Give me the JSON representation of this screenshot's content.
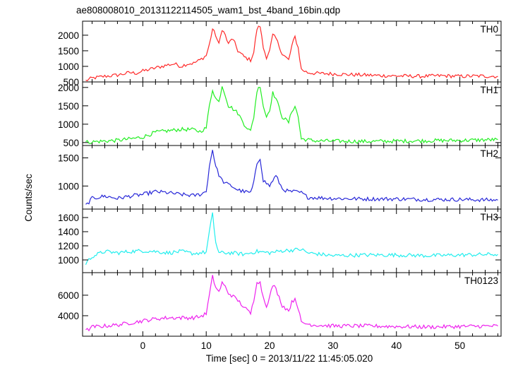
{
  "chart_data": {
    "type": "line",
    "title": "ae808008010_20131122114505_wam1_bst_4band_16bin.qdp",
    "xlabel": "Time [sec] 0 = 2013/11/22 11:45:05.020",
    "ylabel": "Counts/sec",
    "xlim": [
      -9.5,
      56.5
    ],
    "x_ticks": [
      0,
      10,
      20,
      30,
      40,
      50
    ],
    "grid": false,
    "colors": {
      "TH0": "#ff2a2a",
      "TH1": "#22ee22",
      "TH2": "#2828d8",
      "TH3": "#22eeee",
      "TH0123": "#ee22ee"
    },
    "panels": [
      {
        "name": "TH0",
        "ylim": [
          500,
          2450
        ],
        "yticks": [
          500,
          1000,
          1500,
          2000
        ],
        "points": [
          [
            -9,
            540
          ],
          [
            -8,
            620
          ],
          [
            -7,
            650
          ],
          [
            -6,
            680
          ],
          [
            -5,
            700
          ],
          [
            -4,
            720
          ],
          [
            -3,
            760
          ],
          [
            -2,
            800
          ],
          [
            -1,
            780
          ],
          [
            0,
            850
          ],
          [
            1,
            900
          ],
          [
            2,
            950
          ],
          [
            3,
            1000
          ],
          [
            4,
            1050
          ],
          [
            5,
            1080
          ],
          [
            6,
            1000
          ],
          [
            7,
            1080
          ],
          [
            8,
            1100
          ],
          [
            9,
            1200
          ],
          [
            10,
            1350
          ],
          [
            10.5,
            1700
          ],
          [
            11,
            2200
          ],
          [
            11.5,
            2000
          ],
          [
            12,
            1700
          ],
          [
            12.5,
            2200
          ],
          [
            13,
            2000
          ],
          [
            13.5,
            1700
          ],
          [
            14,
            1900
          ],
          [
            14.5,
            1750
          ],
          [
            15,
            1500
          ],
          [
            16,
            1300
          ],
          [
            17,
            1200
          ],
          [
            17.5,
            1450
          ],
          [
            18,
            2200
          ],
          [
            18.5,
            2300
          ],
          [
            19,
            1600
          ],
          [
            19.5,
            1300
          ],
          [
            20,
            1500
          ],
          [
            20.5,
            2000
          ],
          [
            21,
            1900
          ],
          [
            22,
            1400
          ],
          [
            23,
            1200
          ],
          [
            23.5,
            1650
          ],
          [
            24,
            1950
          ],
          [
            24.5,
            1600
          ],
          [
            25,
            900
          ],
          [
            26,
            800
          ],
          [
            27,
            780
          ],
          [
            28,
            770
          ],
          [
            30,
            760
          ],
          [
            32,
            740
          ],
          [
            35,
            720
          ],
          [
            38,
            700
          ],
          [
            41,
            690
          ],
          [
            44,
            680
          ],
          [
            47,
            700
          ],
          [
            50,
            680
          ],
          [
            53,
            690
          ],
          [
            56,
            680
          ]
        ]
      },
      {
        "name": "TH1",
        "ylim": [
          420,
          2150
        ],
        "yticks": [
          500,
          1000,
          1500,
          2000
        ],
        "points": [
          [
            -9,
            510
          ],
          [
            -8,
            520
          ],
          [
            -6,
            540
          ],
          [
            -4,
            560
          ],
          [
            -2,
            600
          ],
          [
            0,
            650
          ],
          [
            2,
            780
          ],
          [
            4,
            820
          ],
          [
            6,
            860
          ],
          [
            8,
            850
          ],
          [
            9,
            800
          ],
          [
            10,
            900
          ],
          [
            10.5,
            1500
          ],
          [
            11,
            1950
          ],
          [
            11.5,
            1700
          ],
          [
            12,
            1600
          ],
          [
            12.5,
            2050
          ],
          [
            13,
            1800
          ],
          [
            13.5,
            1500
          ],
          [
            14,
            1450
          ],
          [
            15,
            1300
          ],
          [
            16,
            1000
          ],
          [
            17,
            800
          ],
          [
            17.5,
            1200
          ],
          [
            18,
            1900
          ],
          [
            18.5,
            2050
          ],
          [
            19,
            1500
          ],
          [
            19.5,
            1200
          ],
          [
            20,
            1400
          ],
          [
            20.5,
            1850
          ],
          [
            21,
            1700
          ],
          [
            22,
            1200
          ],
          [
            23,
            1050
          ],
          [
            23.5,
            1350
          ],
          [
            24,
            1500
          ],
          [
            24.5,
            1200
          ],
          [
            25,
            600
          ],
          [
            27,
            550
          ],
          [
            30,
            540
          ],
          [
            35,
            530
          ],
          [
            40,
            540
          ],
          [
            45,
            550
          ],
          [
            50,
            560
          ],
          [
            56,
            580
          ]
        ]
      },
      {
        "name": "TH2",
        "ylim": [
          590,
          1720
        ],
        "yticks": [
          1000,
          1500
        ],
        "points": [
          [
            -9,
            650
          ],
          [
            -8,
            780
          ],
          [
            -6,
            820
          ],
          [
            -4,
            780
          ],
          [
            -2,
            820
          ],
          [
            0,
            850
          ],
          [
            2,
            900
          ],
          [
            4,
            880
          ],
          [
            6,
            850
          ],
          [
            8,
            830
          ],
          [
            9,
            850
          ],
          [
            10,
            900
          ],
          [
            10.5,
            1350
          ],
          [
            11,
            1650
          ],
          [
            11.5,
            1350
          ],
          [
            12,
            1200
          ],
          [
            12.5,
            1100
          ],
          [
            13,
            1050
          ],
          [
            14,
            1000
          ],
          [
            15,
            930
          ],
          [
            16,
            900
          ],
          [
            17,
            880
          ],
          [
            17.5,
            1050
          ],
          [
            18,
            1400
          ],
          [
            18.5,
            1500
          ],
          [
            19,
            1100
          ],
          [
            20,
            1000
          ],
          [
            20.5,
            1100
          ],
          [
            21,
            1180
          ],
          [
            22,
            950
          ],
          [
            23,
            900
          ],
          [
            24,
            900
          ],
          [
            25,
            880
          ],
          [
            26,
            800
          ],
          [
            28,
            790
          ],
          [
            30,
            780
          ],
          [
            35,
            770
          ],
          [
            40,
            770
          ],
          [
            45,
            760
          ],
          [
            50,
            760
          ],
          [
            56,
            750
          ]
        ]
      },
      {
        "name": "TH3",
        "ylim": [
          820,
          1720
        ],
        "yticks": [
          1000,
          1200,
          1400,
          1600
        ],
        "points": [
          [
            -9,
            950
          ],
          [
            -8,
            1050
          ],
          [
            -6,
            1120
          ],
          [
            -4,
            1100
          ],
          [
            -2,
            1120
          ],
          [
            0,
            1130
          ],
          [
            2,
            1120
          ],
          [
            4,
            1100
          ],
          [
            6,
            1120
          ],
          [
            8,
            1090
          ],
          [
            9,
            1100
          ],
          [
            10,
            1110
          ],
          [
            10.5,
            1400
          ],
          [
            11,
            1650
          ],
          [
            11.5,
            1250
          ],
          [
            12,
            1100
          ],
          [
            14,
            1100
          ],
          [
            16,
            1080
          ],
          [
            18,
            1120
          ],
          [
            20,
            1100
          ],
          [
            22,
            1130
          ],
          [
            25,
            1150
          ],
          [
            26,
            1100
          ],
          [
            28,
            1080
          ],
          [
            30,
            1060
          ],
          [
            35,
            1070
          ],
          [
            40,
            1070
          ],
          [
            45,
            1060
          ],
          [
            50,
            1070
          ],
          [
            56,
            1080
          ]
        ]
      },
      {
        "name": "TH0123",
        "ylim": [
          2000,
          8200
        ],
        "yticks": [
          4000,
          6000
        ],
        "points": [
          [
            -9,
            2500
          ],
          [
            -8,
            2900
          ],
          [
            -6,
            3000
          ],
          [
            -4,
            3100
          ],
          [
            -2,
            3300
          ],
          [
            0,
            3500
          ],
          [
            2,
            3700
          ],
          [
            4,
            3800
          ],
          [
            6,
            3800
          ],
          [
            8,
            3800
          ],
          [
            9,
            3900
          ],
          [
            10,
            4200
          ],
          [
            10.5,
            6000
          ],
          [
            11,
            7800
          ],
          [
            11.5,
            6800
          ],
          [
            12,
            6300
          ],
          [
            12.5,
            7200
          ],
          [
            13,
            6800
          ],
          [
            13.5,
            6200
          ],
          [
            14,
            6000
          ],
          [
            15,
            5500
          ],
          [
            16,
            4800
          ],
          [
            17,
            4200
          ],
          [
            17.5,
            5500
          ],
          [
            18,
            7400
          ],
          [
            18.5,
            7200
          ],
          [
            19,
            5800
          ],
          [
            19.5,
            5000
          ],
          [
            20,
            5800
          ],
          [
            20.5,
            7000
          ],
          [
            21,
            6600
          ],
          [
            22,
            5000
          ],
          [
            23,
            4500
          ],
          [
            23.5,
            5300
          ],
          [
            24,
            5700
          ],
          [
            24.5,
            4800
          ],
          [
            25,
            3300
          ],
          [
            27,
            3100
          ],
          [
            30,
            3000
          ],
          [
            35,
            3000
          ],
          [
            40,
            2950
          ],
          [
            45,
            2900
          ],
          [
            50,
            2950
          ],
          [
            56,
            3000
          ]
        ]
      }
    ]
  }
}
